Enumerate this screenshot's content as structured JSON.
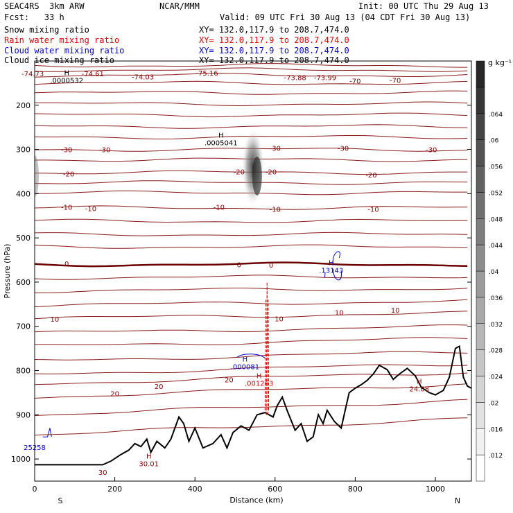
{
  "header": {
    "model": "SEAC4RS  3km ARW",
    "org": "NCAR/MMM",
    "init": "Init: 00 UTC Thu 29 Aug 13",
    "fcst": "Fcst:   33 h",
    "valid": "Valid: 09 UTC Fri 30 Aug 13 (04 CDT Fri 30 Aug 13)"
  },
  "fields": [
    {
      "name": "Snow mixing ratio",
      "xy": "XY= 132.0,117.9 to 208.7,474.0",
      "color": "#000000"
    },
    {
      "name": "Rain water mixing ratio",
      "xy": "XY= 132.0,117.9 to 208.7,474.0",
      "color": "#e00000"
    },
    {
      "name": "Cloud water mixing ratio",
      "xy": "XY= 132.0,117.9 to 208.7,474.0",
      "color": "#0000cc"
    },
    {
      "name": "Cloud ice mixing ratio",
      "xy": "XY= 132.0,117.9 to 208.7,474.0",
      "color": "#000000"
    }
  ],
  "colorbar": {
    "unit": "g kg⁻¹",
    "labels": [
      ".012",
      ".016",
      ".02",
      ".024",
      ".028",
      ".032",
      ".036",
      ".04",
      ".044",
      ".048",
      ".052",
      ".056",
      ".06",
      ".064"
    ]
  },
  "chart_data": {
    "type": "contour cross-section",
    "xlabel": "Distance (km)",
    "ylabel": "Pressure (hPa)",
    "xlim": [
      0,
      1090
    ],
    "ylim": [
      1050,
      100
    ],
    "xticks": [
      0,
      200,
      400,
      600,
      800,
      1000
    ],
    "yticks": [
      200,
      300,
      400,
      500,
      600,
      700,
      800,
      900,
      1000
    ],
    "left_end": "S",
    "right_end": "N",
    "temperature_levels": [
      -70,
      -60,
      -50,
      -40,
      -30,
      -20,
      -10,
      0,
      10,
      20,
      30
    ],
    "temperature_contour_labels": [
      {
        "text": "-74.73",
        "x": -5,
        "p": 128
      },
      {
        "text": "-74.61",
        "x": 145,
        "p": 128
      },
      {
        "text": "-74.03",
        "x": 270,
        "p": 135
      },
      {
        "text": "-75.16",
        "x": 430,
        "p": 127
      },
      {
        "text": "-73.88",
        "x": 650,
        "p": 137
      },
      {
        "text": "-73.99",
        "x": 725,
        "p": 137
      },
      {
        "text": "-70",
        "x": 800,
        "p": 145
      },
      {
        "text": "-70",
        "x": 900,
        "p": 143
      },
      {
        "text": "-30",
        "x": 80,
        "p": 300
      },
      {
        "text": "-30",
        "x": 175,
        "p": 300
      },
      {
        "text": "-30",
        "x": 600,
        "p": 297
      },
      {
        "text": "-30",
        "x": 770,
        "p": 297
      },
      {
        "text": "-30",
        "x": 990,
        "p": 300
      },
      {
        "text": "-20",
        "x": 85,
        "p": 355
      },
      {
        "text": "-20",
        "x": 510,
        "p": 350
      },
      {
        "text": "-20",
        "x": 590,
        "p": 350
      },
      {
        "text": "-20",
        "x": 840,
        "p": 357
      },
      {
        "text": "-10",
        "x": 80,
        "p": 430
      },
      {
        "text": "-10",
        "x": 140,
        "p": 433
      },
      {
        "text": "-10",
        "x": 460,
        "p": 430
      },
      {
        "text": "-10",
        "x": 600,
        "p": 435
      },
      {
        "text": "-10",
        "x": 845,
        "p": 435
      },
      {
        "text": "0",
        "x": 80,
        "p": 558
      },
      {
        "text": "0",
        "x": 510,
        "p": 560
      },
      {
        "text": "0",
        "x": 590,
        "p": 561
      },
      {
        "text": "10",
        "x": 50,
        "p": 683
      },
      {
        "text": "10",
        "x": 610,
        "p": 682
      },
      {
        "text": "10",
        "x": 760,
        "p": 668
      },
      {
        "text": "10",
        "x": 900,
        "p": 663
      },
      {
        "text": "20",
        "x": 200,
        "p": 852
      },
      {
        "text": "20",
        "x": 310,
        "p": 835
      },
      {
        "text": "20",
        "x": 485,
        "p": 820
      },
      {
        "text": "30",
        "x": 170,
        "p": 1030
      }
    ],
    "maxima": [
      {
        "label": "H",
        "value": ".0000532",
        "x": 80,
        "p": 135,
        "color": "#000000"
      },
      {
        "label": "H",
        "value": ".0005041",
        "x": 465,
        "p": 276,
        "color": "#000000"
      },
      {
        "label": "H",
        "value": ".13143",
        "x": 740,
        "p": 565,
        "color": "#0000cc"
      },
      {
        "label": "H",
        "value": ".000081",
        "x": 525,
        "p": 783,
        "color": "#0000cc"
      },
      {
        "label": "H",
        "value": ".001263",
        "x": 560,
        "p": 820,
        "color": "#e00000"
      },
      {
        "label": "H",
        "value": "24.08",
        "x": 960,
        "p": 833,
        "color": "#8b0000"
      },
      {
        "label": "H",
        "value": "30.01",
        "x": 285,
        "p": 1002,
        "color": "#8b0000"
      },
      {
        "label": "",
        "value": "25258",
        "x": 0,
        "p": 965,
        "color": "#0000cc"
      }
    ]
  }
}
